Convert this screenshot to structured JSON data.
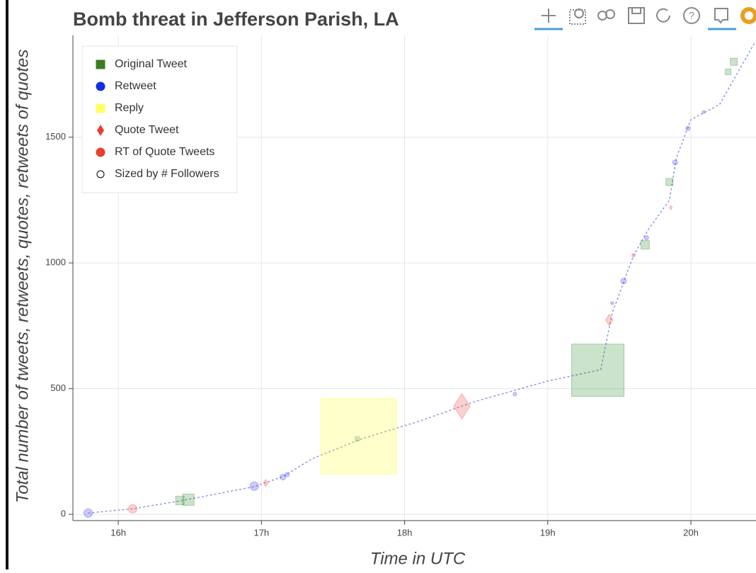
{
  "chart_data": {
    "type": "scatter",
    "title": "Bomb threat in Jefferson Parish, LA",
    "x_label": "Time in UTC",
    "y_label": "Total number of tweets, retweets, quotes, retweets of quotes",
    "xlim": [
      15.683,
      20.455
    ],
    "ylim": [
      -25,
      1905
    ],
    "xticks": [
      {
        "value": 16,
        "label": "16h"
      },
      {
        "value": 17,
        "label": "17h"
      },
      {
        "value": 18,
        "label": "18h"
      },
      {
        "value": 19,
        "label": "19h"
      },
      {
        "value": 20,
        "label": "20h"
      }
    ],
    "yticks": [
      0,
      500,
      1000,
      1500
    ],
    "grid": true,
    "legend_position": "top-left",
    "legend_note": "Sized by # Followers",
    "series": [
      {
        "name": "Original Tweet",
        "marker": "square",
        "color": "#2e8b2e",
        "legend_color": "#3a7d22",
        "x": [
          16.43,
          16.49,
          17.67,
          19.35,
          19.68,
          19.85,
          20.26,
          20.3
        ],
        "values": [
          55,
          58,
          300,
          573,
          1072,
          1322,
          1760,
          1800
        ],
        "sizes": [
          12,
          16,
          6,
          74,
          12,
          10,
          8,
          10
        ]
      },
      {
        "name": "Retweet",
        "marker": "circle",
        "color": "#3333ee",
        "legend_color": "#1030e0",
        "x": [
          15.79,
          16.95,
          17.15,
          17.18,
          18.77,
          19.45,
          19.53,
          19.69,
          19.89,
          19.98,
          20.09
        ],
        "values": [
          5,
          112,
          148,
          158,
          478,
          840,
          928,
          1100,
          1400,
          1535,
          1600
        ],
        "sizes": [
          12,
          12,
          8,
          6,
          5,
          4,
          8,
          6,
          7,
          6,
          4
        ]
      },
      {
        "name": "Reply",
        "marker": "square",
        "color": "#ffff33",
        "legend_color": "#ffff66",
        "x": [
          17.68
        ],
        "values": [
          310
        ],
        "sizes": [
          107
        ]
      },
      {
        "name": "Quote Tweet",
        "marker": "diamond",
        "color": "#ee4444",
        "legend_color": "#e8402f",
        "x": [
          17.03,
          18.4,
          19.43,
          19.86
        ],
        "values": [
          125,
          430,
          773,
          1220
        ],
        "sizes": [
          10,
          36,
          16,
          6
        ]
      },
      {
        "name": "RT of Quote Tweets",
        "marker": "circle",
        "color": "#ee4444",
        "legend_color": "#e8402f",
        "x": [
          16.1,
          19.6
        ],
        "values": [
          22,
          1030
        ],
        "sizes": [
          12,
          5
        ]
      }
    ],
    "trail": {
      "x": [
        15.79,
        16.1,
        16.45,
        16.95,
        17.15,
        17.35,
        17.7,
        18.1,
        18.5,
        19.0,
        19.37,
        19.45,
        19.6,
        19.7,
        19.85,
        19.9,
        20.0,
        20.2,
        20.45
      ],
      "values": [
        5,
        22,
        55,
        110,
        150,
        220,
        300,
        370,
        450,
        530,
        575,
        800,
        1030,
        1130,
        1250,
        1420,
        1570,
        1630,
        1880
      ]
    }
  }
}
